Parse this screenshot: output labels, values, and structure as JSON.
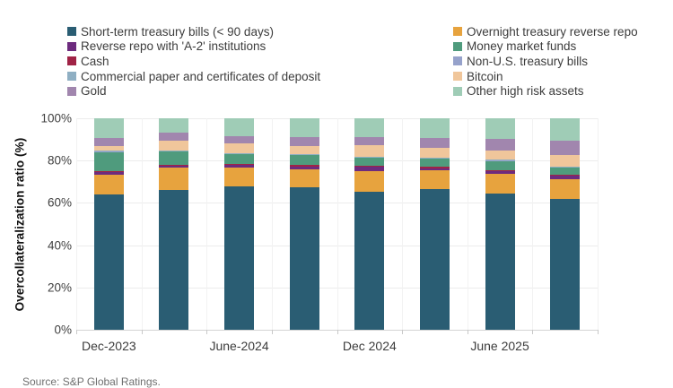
{
  "source": "Source: S&P Global Ratings.",
  "chart_data": {
    "type": "bar",
    "stacked": true,
    "percent_stacked": true,
    "title": "",
    "xlabel": "",
    "ylabel": "Overcollateralization ratio (%)",
    "ylim": [
      0,
      100
    ],
    "grid": true,
    "legend_position": "top-two-columns",
    "ytick_labels": [
      "0%",
      "20%",
      "40%",
      "60%",
      "80%",
      "100%"
    ],
    "categories": [
      "Dec-2023",
      "",
      "June-2024",
      "",
      "Dec 2024",
      "",
      "June 2025",
      ""
    ],
    "visible_x_labels": [
      "Dec-2023",
      "June-2024",
      "Dec 2024",
      "June 2025"
    ],
    "series": [
      {
        "name": "Short-term treasury bills (< 90 days)",
        "color": "#2a5d73",
        "values": [
          64.0,
          66.4,
          68.0,
          67.4,
          65.4,
          66.4,
          64.6,
          61.8
        ]
      },
      {
        "name": "Overnight treasury reverse repo",
        "color": "#e7a33e",
        "values": [
          9.3,
          10.6,
          8.7,
          8.7,
          9.6,
          8.9,
          9.2,
          9.6
        ]
      },
      {
        "name": "Reverse repo with 'A-2' institutions",
        "color": "#6d2b7e",
        "values": [
          1.2,
          0.6,
          1.2,
          1.1,
          2.0,
          1.2,
          1.0,
          1.3
        ]
      },
      {
        "name": "Cash",
        "color": "#a02346",
        "values": [
          0.6,
          0.6,
          0.7,
          1.0,
          0.5,
          0.8,
          0.7,
          0.7
        ]
      },
      {
        "name": "Money market funds",
        "color": "#4f9b7d",
        "values": [
          9.3,
          6.6,
          4.8,
          4.9,
          4.2,
          4.0,
          4.7,
          3.6
        ]
      },
      {
        "name": "Non-U.S. treasury bills",
        "color": "#96a2cb",
        "values": [
          0.1,
          0.1,
          0.1,
          0.1,
          0.1,
          0.2,
          0.1,
          0.1
        ]
      },
      {
        "name": "Commercial paper and certificates of deposit",
        "color": "#8fafc3",
        "values": [
          0.1,
          0.1,
          0.1,
          0.1,
          0.1,
          0.1,
          0.1,
          0.1
        ]
      },
      {
        "name": "Bitcoin",
        "color": "#f0c69b",
        "values": [
          2.4,
          4.7,
          4.6,
          3.6,
          5.4,
          4.5,
          4.5,
          5.3
        ]
      },
      {
        "name": "Gold",
        "color": "#a186ae",
        "values": [
          3.6,
          3.6,
          3.6,
          4.2,
          3.8,
          4.6,
          5.4,
          7.0
        ]
      },
      {
        "name": "Other high risk assets",
        "color": "#9fccb6",
        "values": [
          9.4,
          6.9,
          8.3,
          9.0,
          9.0,
          9.4,
          9.7,
          10.5
        ]
      }
    ],
    "legend_left_column_series": [
      0,
      2,
      3,
      6,
      8
    ],
    "legend_right_column_series": [
      1,
      4,
      5,
      7,
      9
    ]
  }
}
